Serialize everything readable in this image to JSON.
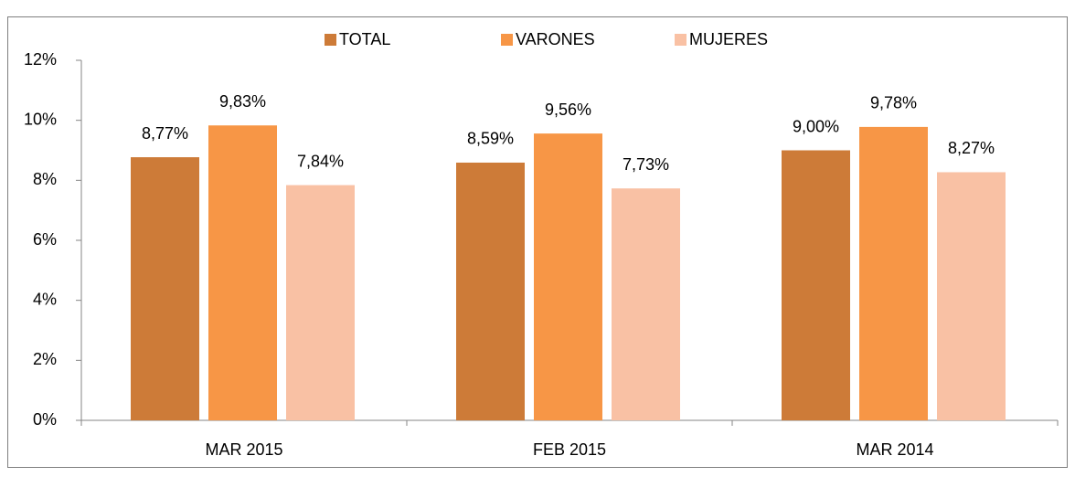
{
  "chart_data": {
    "type": "bar",
    "categories": [
      "MAR 2015",
      "FEB 2015",
      "MAR 2014"
    ],
    "series": [
      {
        "name": "TOTAL",
        "color": "#cd7b38",
        "values": [
          8.77,
          8.59,
          9.0
        ],
        "value_labels": [
          "8,77%",
          "8,59%",
          "9,00%"
        ]
      },
      {
        "name": "VARONES",
        "color": "#f79646",
        "values": [
          9.83,
          9.56,
          9.78
        ],
        "value_labels": [
          "9,83%",
          "9,56%",
          "9,78%"
        ]
      },
      {
        "name": "MUJERES",
        "color": "#f9c1a4",
        "values": [
          7.84,
          7.73,
          8.27
        ],
        "value_labels": [
          "7,84%",
          "7,73%",
          "8,27%"
        ]
      }
    ],
    "ylim": [
      0,
      12
    ],
    "yticks": [
      {
        "value": 0,
        "label": "0%"
      },
      {
        "value": 2,
        "label": "2%"
      },
      {
        "value": 4,
        "label": "4%"
      },
      {
        "value": 6,
        "label": "6%"
      },
      {
        "value": 8,
        "label": "8%"
      },
      {
        "value": 10,
        "label": "10%"
      },
      {
        "value": 12,
        "label": "12%"
      }
    ],
    "legend": "top",
    "grid": false
  }
}
